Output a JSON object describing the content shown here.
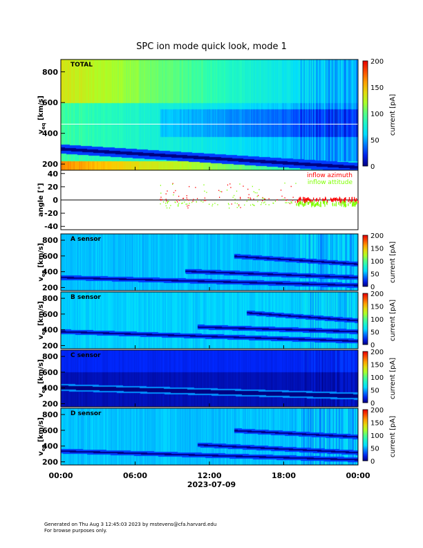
{
  "page": {
    "title": "SPC ion mode quick look, mode 1",
    "footer_line1": "Generated on Thu Aug  3 12:45:03 2023 by mstevens@cfa.harvard.edu",
    "footer_line2": "For browse purposes only."
  },
  "chart_data": [
    {
      "type": "heatmap",
      "panel": "total",
      "label": "TOTAL",
      "ylabel": "v",
      "ylabel_sub": "eq",
      "ylabel_unit": "[km/s]",
      "ylim": [
        160,
        880
      ],
      "yticks": [
        200,
        400,
        600,
        800
      ],
      "colorbar": {
        "label": "current [pA]",
        "range": [
          0,
          200
        ],
        "ticks": [
          0,
          50,
          100,
          150,
          200
        ]
      },
      "xlim": [
        0,
        24
      ],
      "ridges": [
        {
          "start_h": 0,
          "v0": 300,
          "v1": 180
        }
      ],
      "background_level": 60
    },
    {
      "type": "scatter",
      "panel": "angles",
      "ylabel": "angle [°]",
      "ylim": [
        -45,
        45
      ],
      "yticks": [
        -40,
        -20,
        0,
        20,
        40
      ],
      "xlim": [
        0,
        24
      ],
      "series": [
        {
          "name": "inflow azimuth",
          "color": "#ff0000",
          "level_deg": 2
        },
        {
          "name": "inflow attitude",
          "color": "#7fff00",
          "level_deg": -4
        }
      ]
    },
    {
      "type": "heatmap",
      "panel": "A",
      "label": "A sensor",
      "ylabel": "v",
      "ylabel_sub": "eq",
      "ylabel_unit": "[km/s]",
      "ylim": [
        160,
        880
      ],
      "yticks": [
        200,
        400,
        600,
        800
      ],
      "colorbar": {
        "label": "current [pA]",
        "range": [
          0,
          200
        ],
        "ticks": [
          0,
          50,
          100,
          150,
          200
        ]
      },
      "xlim": [
        0,
        24
      ],
      "ridges": [
        {
          "start_h": 0,
          "v0": 330,
          "v1": 230
        },
        {
          "start_h": 10,
          "v0": 410,
          "v1": 330
        },
        {
          "start_h": 14,
          "v0": 600,
          "v1": 500
        }
      ],
      "background_level": 55
    },
    {
      "type": "heatmap",
      "panel": "B",
      "label": "B sensor",
      "ylabel": "v",
      "ylabel_sub": "eq",
      "ylabel_unit": "[km/s]",
      "ylim": [
        160,
        880
      ],
      "yticks": [
        200,
        400,
        600,
        800
      ],
      "colorbar": {
        "label": "current [pA]",
        "range": [
          0,
          200
        ],
        "ticks": [
          0,
          50,
          100,
          150,
          200
        ]
      },
      "xlim": [
        0,
        24
      ],
      "ridges": [
        {
          "start_h": 0,
          "v0": 380,
          "v1": 260
        },
        {
          "start_h": 11,
          "v0": 440,
          "v1": 380
        },
        {
          "start_h": 15,
          "v0": 620,
          "v1": 520
        }
      ],
      "background_level": 58
    },
    {
      "type": "heatmap",
      "panel": "C",
      "label": "C sensor",
      "ylabel": "v",
      "ylabel_sub": "eq",
      "ylabel_unit": "[km/s]",
      "ylim": [
        160,
        880
      ],
      "yticks": [
        200,
        400,
        600,
        800
      ],
      "colorbar": {
        "label": "current [pA]",
        "range": [
          0,
          200
        ],
        "ticks": [
          0,
          50,
          100,
          150,
          200
        ]
      },
      "xlim": [
        0,
        24
      ],
      "ridges": [
        {
          "start_h": 0,
          "v0": 410,
          "v1": 300
        }
      ],
      "background_level": 8
    },
    {
      "type": "heatmap",
      "panel": "D",
      "label": "D sensor",
      "ylabel": "v",
      "ylabel_sub": "eq",
      "ylabel_unit": "[km/s]",
      "ylim": [
        160,
        880
      ],
      "yticks": [
        200,
        400,
        600,
        800
      ],
      "colorbar": {
        "label": "current [pA]",
        "range": [
          0,
          200
        ],
        "ticks": [
          0,
          50,
          100,
          150,
          200
        ]
      },
      "xlim": [
        0,
        24
      ],
      "ridges": [
        {
          "start_h": 0,
          "v0": 340,
          "v1": 230
        },
        {
          "start_h": 11,
          "v0": 420,
          "v1": 320
        },
        {
          "start_h": 14,
          "v0": 600,
          "v1": 520
        }
      ],
      "background_level": 55
    }
  ],
  "xaxis": {
    "ticks": [
      "00:00",
      "06:00",
      "12:00",
      "18:00",
      "00:00"
    ],
    "tick_hours": [
      0,
      6,
      12,
      18,
      24
    ],
    "date_label": "2023-07-09"
  }
}
